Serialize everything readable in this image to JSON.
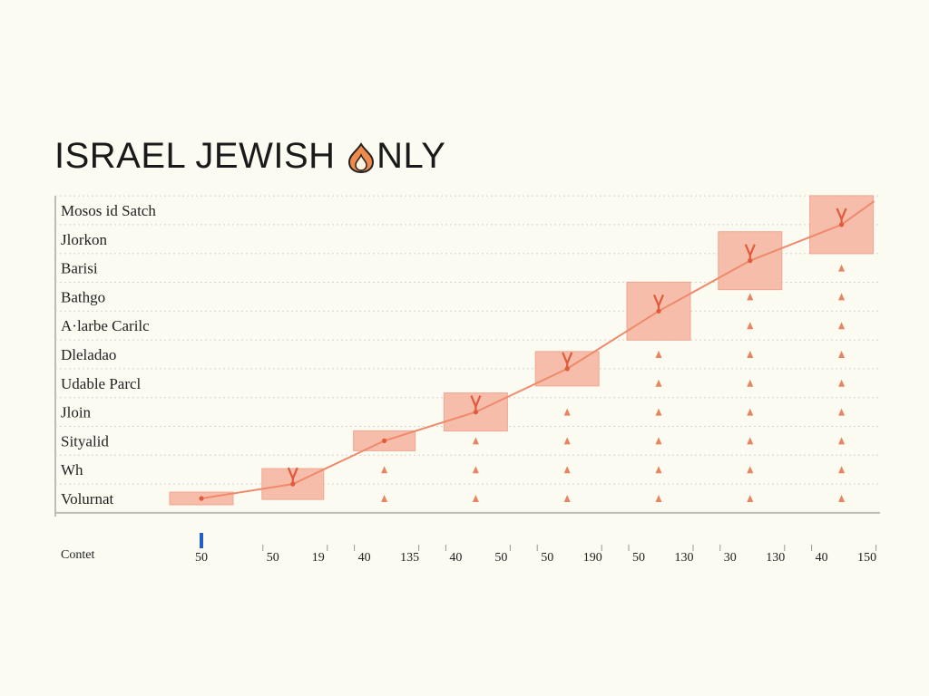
{
  "title": {
    "before": "ISRAEL JEWISH ",
    "icon": "flame-icon",
    "after": "NLY"
  },
  "chart_data": {
    "type": "bar",
    "title": "ISRAEL JEWISH ONLY",
    "rows": [
      "Mosos id Satch",
      "Jlorkon",
      "Barisi",
      "Bathgo",
      "A·larbe Carilc",
      "Dleladao",
      "Udable Parcl",
      "Jloin",
      "Sityalid",
      "Wh",
      "Volurnat"
    ],
    "xlabel": "Contet",
    "column_labels": [
      [
        "50"
      ],
      [
        "50",
        "19"
      ],
      [
        "40",
        "135"
      ],
      [
        "40",
        "50"
      ],
      [
        "50",
        "190"
      ],
      [
        "50",
        "130"
      ],
      [
        "30",
        "130"
      ],
      [
        "40",
        "150"
      ]
    ],
    "boxes": [
      {
        "column": 1,
        "row": 10
      },
      {
        "column": 2,
        "row": 9.5
      },
      {
        "column": 3,
        "row": 8
      },
      {
        "column": 4,
        "row": 7
      },
      {
        "column": 5,
        "row": 5.5
      },
      {
        "column": 6,
        "row": 3.5
      },
      {
        "column": 7,
        "row": 1.75
      },
      {
        "column": 8,
        "row": 0.5
      }
    ],
    "colors": {
      "box": "#f6b8a4",
      "trend": "#ee8a6c",
      "marker": "#e9845f",
      "accent": "#1f5fc8"
    }
  }
}
